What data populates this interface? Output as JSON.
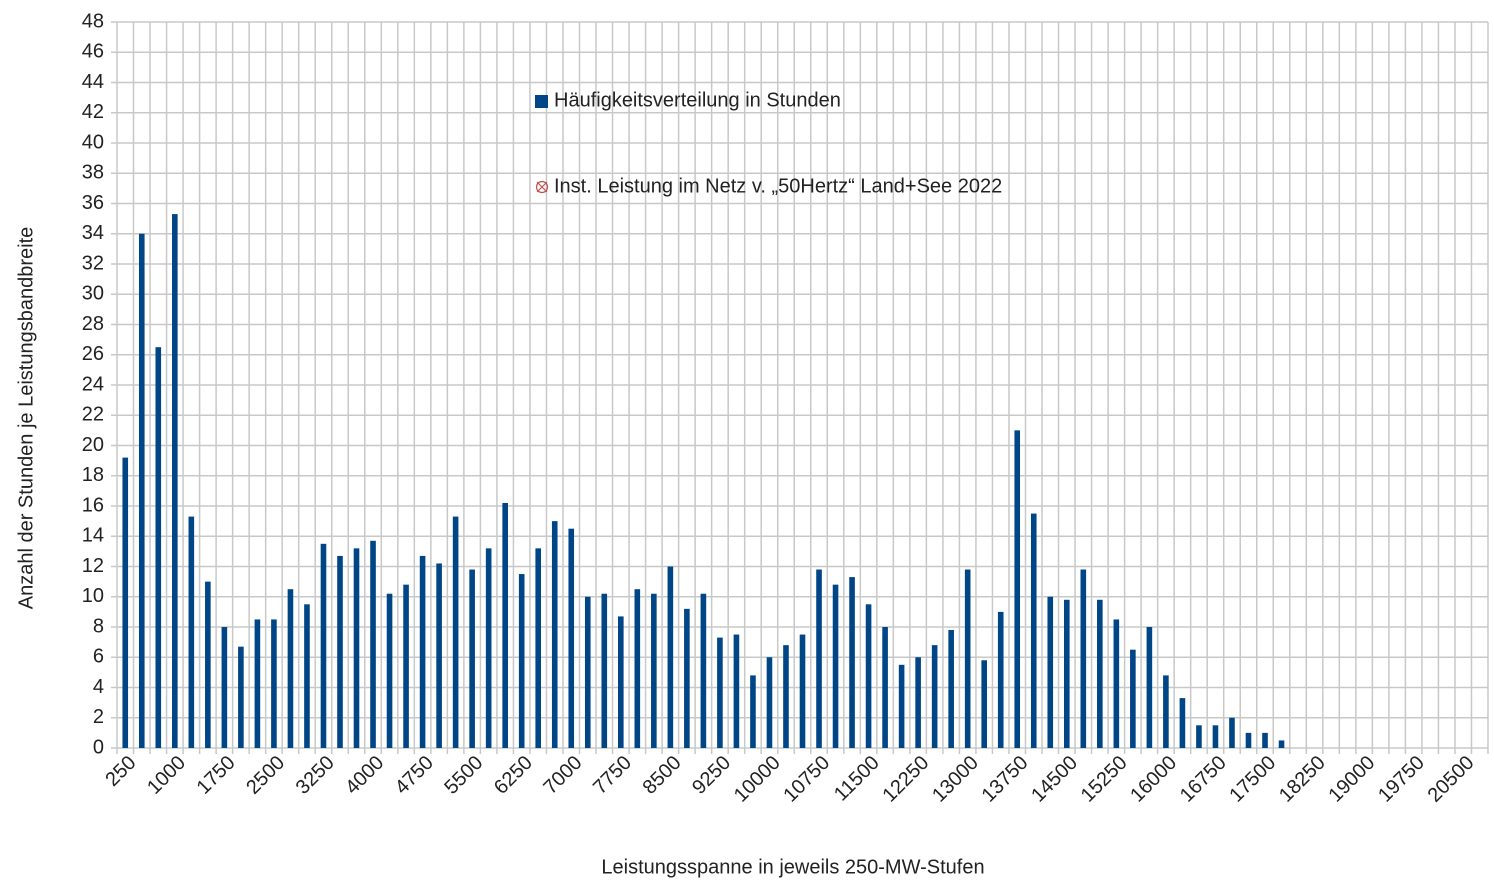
{
  "chart_data": {
    "type": "bar",
    "x_label": "Leistungsspanne in jeweils 250-MW-Stufen",
    "y_label": "Anzahl der Stunden je Leistungsbandbreite",
    "categories": [
      "250",
      null,
      null,
      "1000",
      null,
      null,
      "1750",
      null,
      null,
      "2500",
      null,
      null,
      "3250",
      null,
      null,
      "4000",
      null,
      null,
      "4750",
      null,
      null,
      "5500",
      null,
      null,
      "6250",
      null,
      null,
      "7000",
      null,
      null,
      "7750",
      null,
      null,
      "8500",
      null,
      null,
      "9250",
      null,
      null,
      "10000",
      null,
      null,
      "10750",
      null,
      null,
      "11500",
      null,
      null,
      "12250",
      null,
      null,
      "13000",
      null,
      null,
      "13750",
      null,
      null,
      "14500",
      null,
      null,
      "15250",
      null,
      null,
      "16000",
      null,
      null,
      "16750",
      null,
      null,
      "17500",
      null,
      null,
      "18250",
      null,
      null,
      "19000",
      null,
      null,
      "19750",
      null,
      null,
      "20500",
      null
    ],
    "series": [
      {
        "name": "Häufigkeitsverteilung in Stunden",
        "color": "#004586",
        "values": [
          19.2,
          34.0,
          26.5,
          35.3,
          15.3,
          11.0,
          8.0,
          6.7,
          8.5,
          8.5,
          10.5,
          9.5,
          13.5,
          12.7,
          13.2,
          13.7,
          10.2,
          10.8,
          12.7,
          12.2,
          15.3,
          11.8,
          13.2,
          16.2,
          11.5,
          13.2,
          15.0,
          14.5,
          10.0,
          10.2,
          8.7,
          10.5,
          10.2,
          12.0,
          9.2,
          10.2,
          7.3,
          7.5,
          4.8,
          6.0,
          6.8,
          7.5,
          11.8,
          10.8,
          11.3,
          9.5,
          8.0,
          5.5,
          6.0,
          6.8,
          7.8,
          11.8,
          5.8,
          9.0,
          21.0,
          15.5,
          10.0,
          9.8,
          11.8,
          9.8,
          8.5,
          6.5,
          8.0,
          4.8,
          3.3,
          1.5,
          1.5,
          2.0,
          1.0,
          1.0,
          0.5,
          null,
          null,
          null,
          null,
          null,
          null,
          null,
          null,
          null,
          null,
          null,
          null
        ]
      },
      {
        "name": "Inst. Leistung im Netz v. „50Hertz“  Land+See 2022",
        "color": "#c0504d"
      }
    ],
    "ylim": [
      0,
      48
    ],
    "yticks": [
      0,
      2,
      4,
      6,
      8,
      10,
      12,
      14,
      16,
      18,
      20,
      22,
      24,
      26,
      28,
      30,
      32,
      34,
      36,
      38,
      40,
      42,
      44,
      46,
      48
    ],
    "grid": true
  }
}
